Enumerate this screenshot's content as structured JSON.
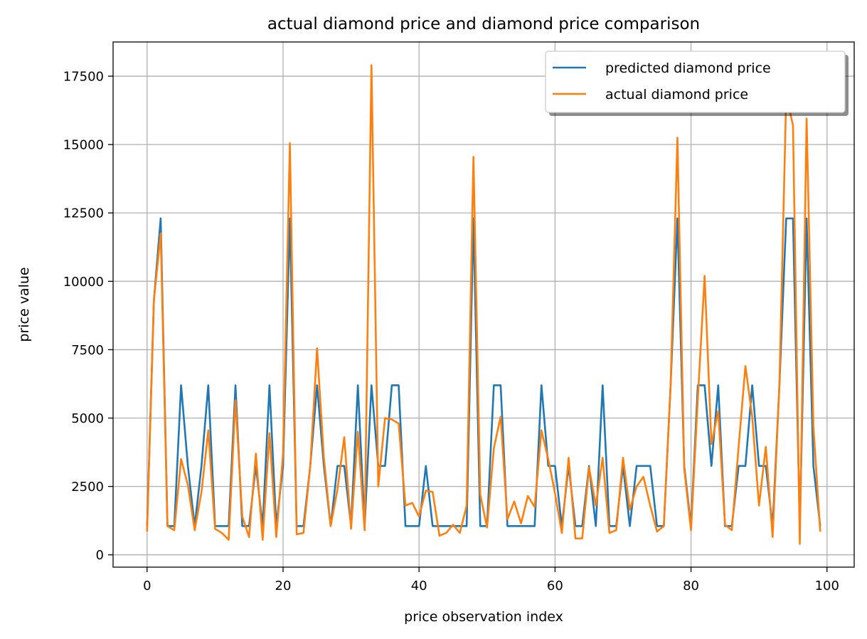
{
  "chart_data": {
    "type": "line",
    "title": "actual diamond price and diamond price comparison",
    "xlabel": "price observation index",
    "ylabel": "price value",
    "xlim": [
      -5,
      104
    ],
    "ylim": [
      -450,
      18750
    ],
    "x_ticks": [
      0,
      20,
      40,
      60,
      80,
      100
    ],
    "y_ticks": [
      0,
      2500,
      5000,
      7500,
      10000,
      12500,
      15000,
      17500
    ],
    "grid": true,
    "legend_position": "top-right",
    "series": [
      {
        "name": "predicted diamond price",
        "color": "#1f77b4",
        "values": [
          1050,
          9300,
          12300,
          1050,
          1050,
          6200,
          3250,
          1050,
          3250,
          6200,
          1050,
          1050,
          1050,
          6200,
          1050,
          1050,
          3250,
          1050,
          6200,
          1050,
          3250,
          12300,
          1050,
          1050,
          3250,
          6200,
          3250,
          1050,
          3250,
          3250,
          1050,
          6200,
          1050,
          6200,
          3250,
          3250,
          6200,
          6200,
          1050,
          1050,
          1050,
          3250,
          1050,
          1050,
          1050,
          1050,
          1050,
          1050,
          12300,
          1050,
          1050,
          6200,
          6200,
          1050,
          1050,
          1050,
          1050,
          1050,
          6200,
          3250,
          3250,
          1050,
          3250,
          1050,
          1050,
          3250,
          1050,
          6200,
          1050,
          1050,
          3250,
          1050,
          3250,
          3250,
          3250,
          1050,
          1050,
          6200,
          12300,
          3250,
          1050,
          6200,
          6200,
          3250,
          6200,
          1050,
          1050,
          3250,
          3250,
          6200,
          3250,
          3250,
          1050,
          6200,
          12300,
          12300,
          1050,
          12300,
          3250,
          1050
        ]
      },
      {
        "name": "actual diamond price",
        "color": "#ff7f0e",
        "values": [
          850,
          9300,
          11750,
          1050,
          900,
          3500,
          2550,
          900,
          2300,
          4550,
          950,
          800,
          550,
          5650,
          1400,
          650,
          3700,
          550,
          4450,
          650,
          3700,
          15050,
          750,
          800,
          3250,
          7550,
          3550,
          1050,
          2400,
          4300,
          950,
          4500,
          900,
          17900,
          2500,
          5000,
          4950,
          4800,
          1800,
          1900,
          1400,
          2350,
          2300,
          700,
          800,
          1100,
          800,
          1800,
          14550,
          2200,
          1000,
          3900,
          5050,
          1300,
          1950,
          1150,
          2150,
          1750,
          4550,
          3500,
          2250,
          800,
          3550,
          600,
          600,
          3200,
          1800,
          3550,
          800,
          900,
          3550,
          1650,
          2500,
          2850,
          1800,
          850,
          1050,
          6200,
          15250,
          3150,
          900,
          5700,
          10200,
          4050,
          5250,
          1100,
          900,
          3950,
          6900,
          5050,
          1800,
          3950,
          650,
          6200,
          16800,
          15700,
          400,
          15950,
          4700,
          850
        ]
      }
    ]
  }
}
